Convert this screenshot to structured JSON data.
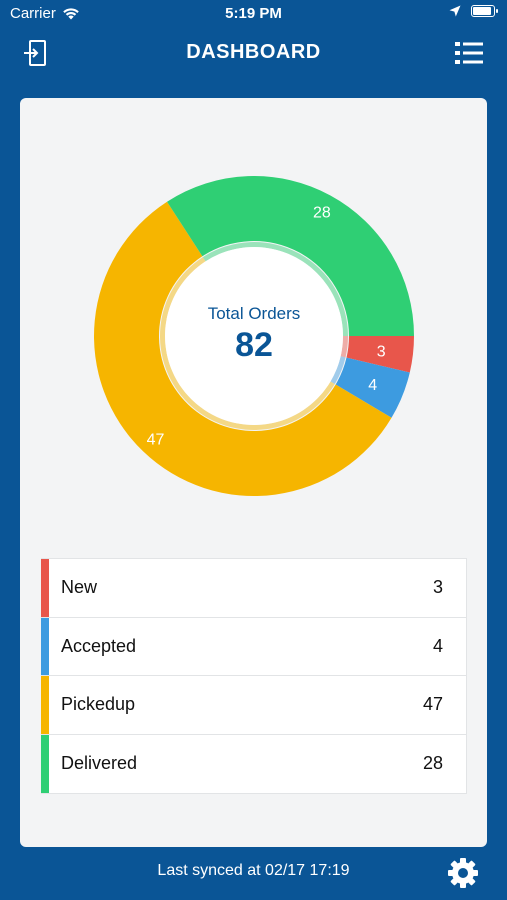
{
  "status_bar": {
    "carrier": "Carrier",
    "time": "5:19 PM"
  },
  "header": {
    "title": "DASHBOARD",
    "left_icon": "logout-icon",
    "right_icon": "list-menu-icon"
  },
  "chart_data": {
    "type": "pie",
    "title": "Total Orders",
    "total": "82",
    "categories": [
      "New",
      "Accepted",
      "Pickedup",
      "Delivered"
    ],
    "values": [
      3,
      4,
      47,
      28
    ],
    "colors": [
      "#e8564b",
      "#3d9be0",
      "#f6b500",
      "#2fcf74"
    ]
  },
  "legend": [
    {
      "label": "New",
      "count": "3",
      "color": "#e8564b"
    },
    {
      "label": "Accepted",
      "count": "4",
      "color": "#3d9be0"
    },
    {
      "label": "Pickedup",
      "count": "47",
      "color": "#f6b500"
    },
    {
      "label": "Delivered",
      "count": "28",
      "color": "#2fcf74"
    }
  ],
  "footer": {
    "sync_text": "Last synced at 02/17 17:19",
    "settings_icon": "gear-icon"
  }
}
